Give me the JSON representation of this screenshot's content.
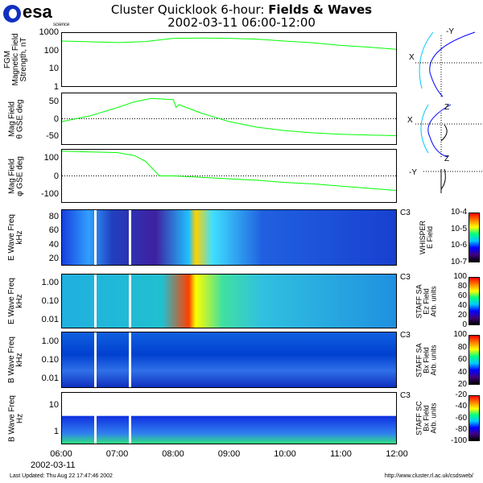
{
  "header": {
    "logo": "esa",
    "logo_sub": "science",
    "title_plain": "Cluster Quicklook 6-hour: ",
    "title_bold": "Fields & Waves",
    "subtitle": "2002-03-11 06:00-12:00"
  },
  "footer": {
    "updated": "Last Updated:  Thu Aug 22 17:47:46 2002",
    "url": "http://www.cluster.rl.ac.uk/csdsweb/"
  },
  "orbit": {
    "x1": "X",
    "y1": "-Y",
    "x2": "X",
    "z2": "Z",
    "y3": "-Y",
    "z3": "Z"
  },
  "chart_data": [
    {
      "type": "line",
      "ylabel": "FGM\nMagnetic Field\nStrength, nT",
      "yscale": "log",
      "ylim": [
        1,
        1000
      ],
      "yticks": [
        "1000",
        "100",
        "10",
        "1"
      ],
      "x": [
        0,
        0.5,
        1,
        1.5,
        2,
        2.5,
        3,
        3.5,
        4,
        4.5,
        5,
        5.5,
        6
      ],
      "values": [
        350,
        320,
        290,
        330,
        500,
        520,
        500,
        450,
        350,
        280,
        200,
        160,
        120
      ],
      "color": "#00ff00"
    },
    {
      "type": "line",
      "ylabel": "Mag Field\nθ GSE deg",
      "ylim": [
        -90,
        90
      ],
      "yticks": [
        "50",
        "0",
        "-50"
      ],
      "x": [
        0,
        0.5,
        1,
        1.3,
        1.6,
        2.0,
        2.05,
        2.1,
        2.5,
        3,
        3.5,
        4,
        4.5,
        5,
        5.5,
        6
      ],
      "values": [
        -10,
        10,
        40,
        60,
        72,
        68,
        40,
        50,
        20,
        -10,
        -30,
        -42,
        -50,
        -55,
        -58,
        -60
      ],
      "color": "#00ff00"
    },
    {
      "type": "line",
      "ylabel": "Mag Field\nφ GSE deg",
      "ylim": [
        -180,
        180
      ],
      "yticks": [
        "100",
        "0",
        "-100"
      ],
      "x": [
        0,
        0.5,
        1,
        1.3,
        1.5,
        1.75,
        2,
        2.5,
        3,
        3.5,
        4,
        4.5,
        5,
        5.5,
        6
      ],
      "values": [
        170,
        165,
        160,
        140,
        100,
        0,
        0,
        -10,
        -20,
        -30,
        -45,
        -55,
        -70,
        -85,
        -100
      ],
      "color": "#00ff00"
    },
    {
      "type": "heatmap",
      "ylabel": "E Wave Freq\nkHz",
      "yticks": [
        "80",
        "60",
        "40",
        "20"
      ],
      "spacecraft": "C3",
      "colorbar": {
        "label": "WHISPER\nE Field",
        "ticks": [
          "10-4",
          "10-5",
          "10-6",
          "10-7"
        ]
      }
    },
    {
      "type": "heatmap",
      "ylabel": "E Wave Freq\nkHz",
      "yticks": [
        "1.00",
        "0.10",
        "0.01"
      ],
      "spacecraft": "C3",
      "colorbar": {
        "label": "STAFF SA\nEz Field\nArb. units",
        "ticks": [
          "100",
          "80",
          "60",
          "40",
          "20",
          "0"
        ]
      }
    },
    {
      "type": "heatmap",
      "ylabel": "B Wave Freq\nkHz",
      "yticks": [
        "1.00",
        "0.10",
        "0.01"
      ],
      "spacecraft": "C3",
      "colorbar": {
        "label": "STAFF SA\nBx Field\nArb. units",
        "ticks": [
          "100",
          "80",
          "60",
          "40",
          "20"
        ]
      }
    },
    {
      "type": "heatmap",
      "ylabel": "B Wave Freq\nHz",
      "yticks": [
        "10",
        "1"
      ],
      "spacecraft": "C3",
      "colorbar": {
        "label": "STAFF SC\nBx Field\nArb. units",
        "ticks": [
          "-20",
          "-40",
          "-60",
          "-80",
          "-100"
        ]
      }
    }
  ],
  "xaxis": {
    "ticks": [
      "06:00",
      "07:00",
      "08:00",
      "09:00",
      "10:00",
      "11:00",
      "12:00"
    ],
    "date": "2002-03-11"
  }
}
